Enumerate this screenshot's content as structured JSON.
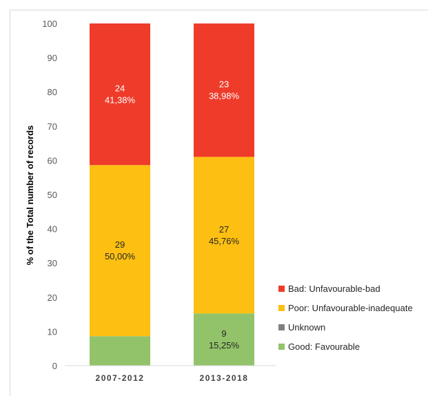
{
  "chart_data": {
    "type": "bar",
    "stacked": true,
    "categories": [
      "2007-2012",
      "2013-2018"
    ],
    "ylabel": "% of the Total number of records",
    "ylim": [
      0,
      100
    ],
    "yticks": [
      0,
      10,
      20,
      30,
      40,
      50,
      60,
      70,
      80,
      90,
      100
    ],
    "grid": false,
    "legend_position": "right",
    "series": [
      {
        "name": "Good: Favourable",
        "color": "#92c36a",
        "values": [
          8.62,
          15.25
        ],
        "labels": [
          [
            "",
            ""
          ],
          [
            "9",
            "15,25%"
          ]
        ],
        "label_color": "#262626"
      },
      {
        "name": "Unknown",
        "color": "#7f7f7f",
        "values": [
          0,
          0
        ],
        "labels": [
          [
            "",
            ""
          ],
          [
            "",
            ""
          ]
        ],
        "label_color": "#ffffff"
      },
      {
        "name": "Poor: Unfavourable-inadequate",
        "color": "#fdbf12",
        "values": [
          50.0,
          45.76
        ],
        "labels": [
          [
            "29",
            "50,00%"
          ],
          [
            "27",
            "45,76%"
          ]
        ],
        "label_color": "#262626"
      },
      {
        "name": "Bad: Unfavourable-bad",
        "color": "#ee3b2a",
        "values": [
          41.38,
          38.98
        ],
        "labels": [
          [
            "24",
            "41,38%"
          ],
          [
            "23",
            "38,98%"
          ]
        ],
        "label_color": "#ffffff"
      }
    ],
    "legend_order": [
      "Bad: Unfavourable-bad",
      "Poor: Unfavourable-inadequate",
      "Unknown",
      "Good: Favourable"
    ]
  }
}
